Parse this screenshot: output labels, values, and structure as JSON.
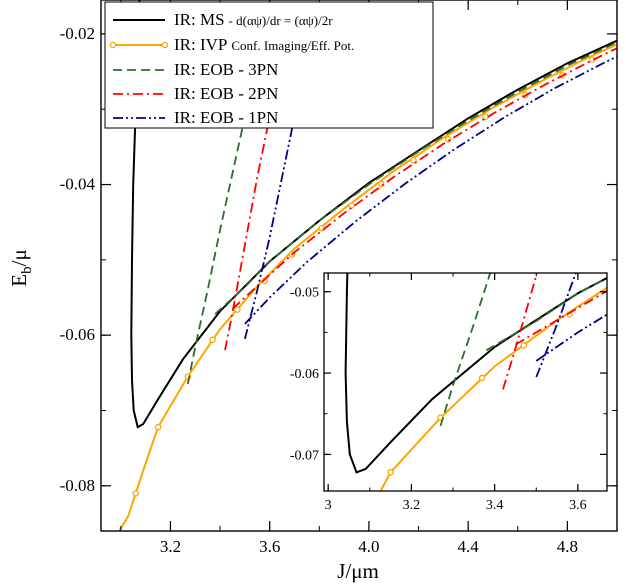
{
  "chart_data": {
    "type": "line",
    "xlabel": "J/μm",
    "ylabel": "E_b/μ",
    "xlim": [
      2.92,
      5.0
    ],
    "ylim": [
      -0.086,
      -0.0155
    ],
    "xticks": [
      3.2,
      3.6,
      4.0,
      4.4,
      4.8
    ],
    "xtick_labels": [
      "3.2",
      "3.6",
      "4.0",
      "4.4",
      "4.8"
    ],
    "yticks": [
      -0.08,
      -0.06,
      -0.04,
      -0.02
    ],
    "ytick_labels": [
      "-0.08",
      "-0.06",
      "-0.04",
      "-0.02"
    ],
    "grid": false,
    "legend_position": "top-left",
    "series": [
      {
        "name": "IR: MS",
        "legend_suffix": "- d(αψ)/dr = (αψ)/2r",
        "color": "#000000",
        "style": "solid",
        "marker": "none",
        "points": [
          [
            3.075,
            -0.0155
          ],
          [
            3.07,
            -0.02
          ],
          [
            3.06,
            -0.03
          ],
          [
            3.05,
            -0.04
          ],
          [
            3.045,
            -0.05
          ],
          [
            3.042,
            -0.06
          ],
          [
            3.045,
            -0.066
          ],
          [
            3.052,
            -0.07
          ],
          [
            3.068,
            -0.0722
          ],
          [
            3.09,
            -0.0718
          ],
          [
            3.15,
            -0.0685
          ],
          [
            3.25,
            -0.0632
          ],
          [
            3.4,
            -0.0568
          ],
          [
            3.6,
            -0.0502
          ],
          [
            3.8,
            -0.0448
          ],
          [
            4.0,
            -0.0398
          ],
          [
            4.2,
            -0.0355
          ],
          [
            4.4,
            -0.0312
          ],
          [
            4.6,
            -0.0274
          ],
          [
            4.8,
            -0.0239
          ],
          [
            5.0,
            -0.0209
          ]
        ]
      },
      {
        "name": "IR: IVP",
        "legend_suffix": "Conf. Imaging/Eff. Pot.",
        "color": "#ffa500",
        "style": "solid",
        "marker": "circle",
        "points": [
          [
            2.99,
            -0.0862
          ],
          [
            3.03,
            -0.084
          ],
          [
            3.06,
            -0.081
          ],
          [
            3.1,
            -0.077
          ],
          [
            3.15,
            -0.0722
          ],
          [
            3.27,
            -0.0655
          ],
          [
            3.4,
            -0.0592
          ],
          [
            3.55,
            -0.0535
          ],
          [
            3.7,
            -0.0485
          ],
          [
            3.9,
            -0.0432
          ],
          [
            4.1,
            -0.0382
          ],
          [
            4.3,
            -0.0338
          ],
          [
            4.5,
            -0.0298
          ],
          [
            4.7,
            -0.0262
          ],
          [
            4.88,
            -0.0232
          ],
          [
            5.0,
            -0.0214
          ]
        ],
        "marker_points": [
          [
            3.06,
            -0.081
          ],
          [
            3.15,
            -0.0722
          ],
          [
            3.27,
            -0.0655
          ],
          [
            3.37,
            -0.0606
          ],
          [
            3.47,
            -0.0566
          ],
          [
            3.58,
            -0.0528
          ],
          [
            3.69,
            -0.0493
          ],
          [
            3.81,
            -0.0458
          ],
          [
            3.93,
            -0.0428
          ],
          [
            4.05,
            -0.0399
          ],
          [
            4.18,
            -0.0368
          ],
          [
            4.32,
            -0.034
          ],
          [
            4.47,
            -0.031
          ],
          [
            4.63,
            -0.0281
          ],
          [
            4.78,
            -0.0255
          ],
          [
            4.9,
            -0.0234
          ]
        ]
      },
      {
        "name": "IR: EOB - 3PN",
        "color": "#2e6b2e",
        "style": "dashed",
        "marker": "none",
        "points": [
          [
            3.27,
            -0.0665
          ],
          [
            3.3,
            -0.0615
          ],
          [
            3.35,
            -0.054
          ],
          [
            3.4,
            -0.046
          ],
          [
            3.45,
            -0.0385
          ],
          [
            3.5,
            -0.031
          ]
        ],
        "points_b": [
          [
            3.38,
            -0.0572
          ],
          [
            3.5,
            -0.0536
          ],
          [
            3.6,
            -0.0502
          ],
          [
            3.8,
            -0.0448
          ],
          [
            4.0,
            -0.04
          ],
          [
            4.2,
            -0.0356
          ],
          [
            4.4,
            -0.0315
          ],
          [
            4.6,
            -0.0277
          ],
          [
            4.8,
            -0.0242
          ],
          [
            5.0,
            -0.0211
          ]
        ]
      },
      {
        "name": "IR: EOB - 2PN",
        "color": "#ff0000",
        "style": "dashdot",
        "marker": "none",
        "points": [
          [
            3.42,
            -0.062
          ],
          [
            3.45,
            -0.057
          ],
          [
            3.5,
            -0.048
          ],
          [
            3.55,
            -0.039
          ],
          [
            3.6,
            -0.031
          ]
        ],
        "points_b": [
          [
            3.45,
            -0.0565
          ],
          [
            3.55,
            -0.0535
          ],
          [
            3.7,
            -0.049
          ],
          [
            3.9,
            -0.0438
          ],
          [
            4.1,
            -0.039
          ],
          [
            4.3,
            -0.0346
          ],
          [
            4.5,
            -0.0306
          ],
          [
            4.7,
            -0.0269
          ],
          [
            4.9,
            -0.0235
          ],
          [
            5.0,
            -0.0219
          ]
        ]
      },
      {
        "name": "IR: EOB - 1PN",
        "color": "#00008b",
        "style": "dashdotdot",
        "marker": "none",
        "points": [
          [
            3.5,
            -0.0605
          ],
          [
            3.55,
            -0.054
          ],
          [
            3.6,
            -0.047
          ],
          [
            3.65,
            -0.039
          ],
          [
            3.7,
            -0.031
          ]
        ],
        "points_b": [
          [
            3.5,
            -0.0585
          ],
          [
            3.6,
            -0.055
          ],
          [
            3.75,
            -0.0503
          ],
          [
            3.95,
            -0.0448
          ],
          [
            4.15,
            -0.0398
          ],
          [
            4.35,
            -0.0352
          ],
          [
            4.55,
            -0.031
          ],
          [
            4.75,
            -0.0272
          ],
          [
            4.95,
            -0.0238
          ],
          [
            5.0,
            -0.023
          ]
        ]
      }
    ],
    "inset": {
      "xlim": [
        2.99,
        3.67
      ],
      "ylim": [
        -0.0745,
        -0.0477
      ],
      "xticks": [
        3.0,
        3.2,
        3.4,
        3.6
      ],
      "xtick_labels": [
        "3",
        "3.2",
        "3.4",
        "3.6"
      ],
      "yticks": [
        -0.07,
        -0.06,
        -0.05
      ],
      "ytick_labels": [
        "-0.07",
        "-0.06",
        "-0.05"
      ]
    }
  }
}
